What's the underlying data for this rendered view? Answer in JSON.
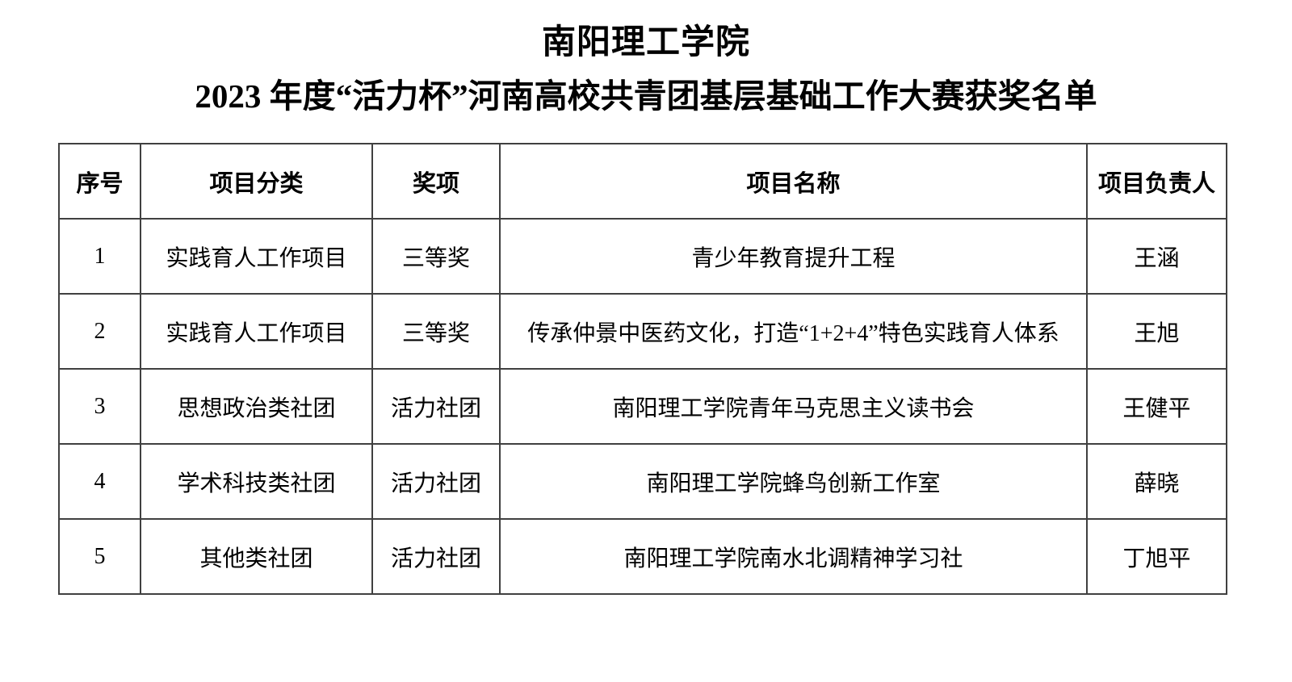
{
  "document": {
    "title": "南阳理工学院",
    "subtitle": "2023 年度“活力杯”河南高校共青团基层基础工作大赛获奖名单"
  },
  "table": {
    "headers": {
      "index": "序号",
      "category": "项目分类",
      "award": "奖项",
      "project_name": "项目名称",
      "leader": "项目负责人"
    },
    "rows": [
      [
        "1",
        "实践育人工作项目",
        "三等奖",
        "青少年教育提升工程",
        "王涵"
      ],
      [
        "2",
        "实践育人工作项目",
        "三等奖",
        "传承仲景中医药文化，打造“1+2+4”特色实践育人体系",
        "王旭"
      ],
      [
        "3",
        "思想政治类社团",
        "活力社团",
        "南阳理工学院青年马克思主义读书会",
        "王健平"
      ],
      [
        "4",
        "学术科技类社团",
        "活力社团",
        "南阳理工学院蜂鸟创新工作室",
        "薛晓"
      ],
      [
        "5",
        "其他类社团",
        "活力社团",
        "南阳理工学院南水北调精神学习社",
        "丁旭平"
      ]
    ]
  }
}
